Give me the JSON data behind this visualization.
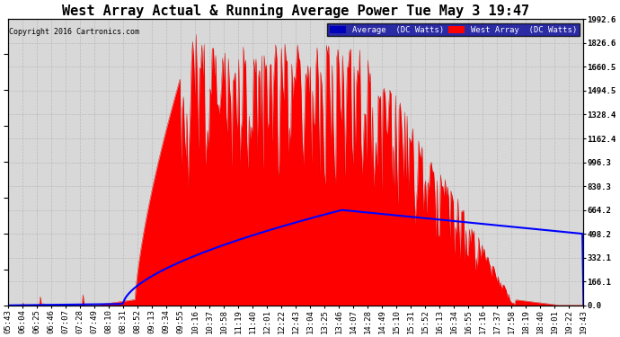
{
  "title": "West Array Actual & Running Average Power Tue May 3 19:47",
  "copyright": "Copyright 2016 Cartronics.com",
  "legend_labels": [
    "Average  (DC Watts)",
    "West Array  (DC Watts)"
  ],
  "ymax": 1992.6,
  "ymin": 0.0,
  "yticks": [
    0.0,
    166.1,
    332.1,
    498.2,
    664.2,
    830.3,
    996.3,
    1162.4,
    1328.4,
    1494.5,
    1660.5,
    1826.6,
    1992.6
  ],
  "bg_color": "#ffffff",
  "plot_bg_color": "#d8d8d8",
  "title_fontsize": 11,
  "tick_fontsize": 6.5,
  "x_labels": [
    "05:43",
    "06:04",
    "06:25",
    "06:46",
    "07:07",
    "07:28",
    "07:49",
    "08:10",
    "08:31",
    "08:52",
    "09:13",
    "09:34",
    "09:55",
    "10:16",
    "10:37",
    "10:58",
    "11:19",
    "11:40",
    "12:01",
    "12:22",
    "12:43",
    "13:04",
    "13:25",
    "13:46",
    "14:07",
    "14:28",
    "14:49",
    "15:10",
    "15:31",
    "15:52",
    "16:13",
    "16:34",
    "16:55",
    "17:16",
    "17:37",
    "17:58",
    "18:19",
    "18:40",
    "19:01",
    "19:22",
    "19:43"
  ]
}
